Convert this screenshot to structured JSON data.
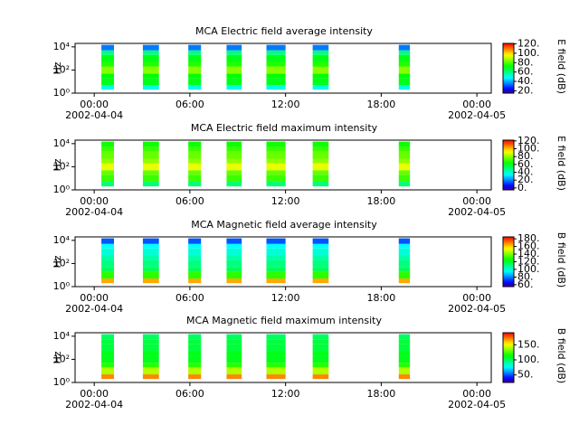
{
  "chart_data": [
    {
      "type": "spectrogram",
      "title": "MCA  Electric field average intensity",
      "y_label": "Hz",
      "colorbar_label": "E field (dB)",
      "y_scale": "log",
      "xlim": [
        -1.2,
        24.9
      ],
      "xticks": [
        {
          "value": 0,
          "label": "00:00",
          "date": "2002-04-04"
        },
        {
          "value": 6,
          "label": "06:00"
        },
        {
          "value": 12,
          "label": "12:00"
        },
        {
          "value": 18,
          "label": "18:00"
        },
        {
          "value": 24,
          "label": "00:00",
          "date": "2002-04-05"
        }
      ],
      "ylim": [
        1,
        20000
      ],
      "yticks": [
        {
          "value": 1,
          "label": "10⁰"
        },
        {
          "value": 100,
          "label": "10²"
        },
        {
          "value": 10000,
          "label": "10⁴"
        }
      ],
      "clim": [
        15,
        121
      ],
      "cticks": [
        {
          "value": 20,
          "label": "20."
        },
        {
          "value": 40,
          "label": "40."
        },
        {
          "value": 60,
          "label": "60."
        },
        {
          "value": 80,
          "label": "80."
        },
        {
          "value": 100,
          "label": "100."
        },
        {
          "value": 120,
          "label": "120."
        }
      ],
      "blocks": [
        [
          0.45,
          1.24
        ],
        [
          3.05,
          4.06
        ],
        [
          5.9,
          6.7
        ],
        [
          8.3,
          9.25
        ],
        [
          10.8,
          12.0
        ],
        [
          13.7,
          14.7
        ],
        [
          19.1,
          19.8
        ]
      ],
      "freq_edges": [
        2,
        5,
        20,
        50,
        200,
        500,
        2000,
        5000,
        15000
      ],
      "intensity": [
        50,
        70,
        72,
        85,
        75,
        70,
        60,
        35
      ]
    },
    {
      "type": "spectrogram",
      "title": "MCA  Electric field maximum intensity",
      "y_label": "Hz",
      "colorbar_label": "E field (dB)",
      "y_scale": "log",
      "xlim": [
        -1.2,
        24.9
      ],
      "xticks": [
        {
          "value": 0,
          "label": "00:00",
          "date": "2002-04-04"
        },
        {
          "value": 6,
          "label": "06:00"
        },
        {
          "value": 12,
          "label": "12:00"
        },
        {
          "value": 18,
          "label": "18:00"
        },
        {
          "value": 24,
          "label": "00:00",
          "date": "2002-04-05"
        }
      ],
      "ylim": [
        1,
        20000
      ],
      "yticks": [
        {
          "value": 1,
          "label": "10⁰"
        },
        {
          "value": 100,
          "label": "10²"
        },
        {
          "value": 10000,
          "label": "10⁴"
        }
      ],
      "clim": [
        -5,
        122
      ],
      "cticks": [
        {
          "value": 0,
          "label": "0."
        },
        {
          "value": 20,
          "label": "20."
        },
        {
          "value": 40,
          "label": "40."
        },
        {
          "value": 60,
          "label": "60."
        },
        {
          "value": 80,
          "label": "80."
        },
        {
          "value": 100,
          "label": "100."
        },
        {
          "value": 120,
          "label": "120."
        }
      ],
      "blocks": [
        [
          0.45,
          1.24
        ],
        [
          3.05,
          4.06
        ],
        [
          5.9,
          6.7
        ],
        [
          8.3,
          9.25
        ],
        [
          10.8,
          12.0
        ],
        [
          13.7,
          14.7
        ],
        [
          19.1,
          19.8
        ]
      ],
      "freq_edges": [
        2,
        5,
        20,
        50,
        200,
        500,
        2000,
        5000,
        15000
      ],
      "intensity": [
        50,
        70,
        75,
        90,
        80,
        75,
        70,
        65
      ]
    },
    {
      "type": "spectrogram",
      "title": "MCA  Magnetic field average intensity",
      "y_label": "Hz",
      "colorbar_label": "B field (dB)",
      "y_scale": "log",
      "xlim": [
        -1.2,
        24.9
      ],
      "xticks": [
        {
          "value": 0,
          "label": "00:00",
          "date": "2002-04-04"
        },
        {
          "value": 6,
          "label": "06:00"
        },
        {
          "value": 12,
          "label": "12:00"
        },
        {
          "value": 18,
          "label": "18:00"
        },
        {
          "value": 24,
          "label": "00:00",
          "date": "2002-04-05"
        }
      ],
      "ylim": [
        1,
        20000
      ],
      "yticks": [
        {
          "value": 1,
          "label": "10⁰"
        },
        {
          "value": 100,
          "label": "10²"
        },
        {
          "value": 10000,
          "label": "10⁴"
        }
      ],
      "clim": [
        55,
        185
      ],
      "cticks": [
        {
          "value": 60,
          "label": "60."
        },
        {
          "value": 80,
          "label": "80."
        },
        {
          "value": 100,
          "label": "100."
        },
        {
          "value": 120,
          "label": "120."
        },
        {
          "value": 140,
          "label": "140."
        },
        {
          "value": 160,
          "label": "160."
        },
        {
          "value": 180,
          "label": "180."
        }
      ],
      "blocks": [
        [
          0.45,
          1.24
        ],
        [
          3.05,
          4.06
        ],
        [
          5.9,
          6.7
        ],
        [
          8.3,
          9.25
        ],
        [
          10.8,
          12.0
        ],
        [
          13.7,
          14.7
        ],
        [
          19.1,
          19.8
        ]
      ],
      "freq_edges": [
        2,
        5,
        20,
        50,
        200,
        500,
        2000,
        5000,
        15000
      ],
      "intensity": [
        165,
        130,
        115,
        110,
        105,
        100,
        95,
        75
      ]
    },
    {
      "type": "spectrogram",
      "title": "MCA  Magnetic field maximum intensity",
      "y_label": "Hz",
      "colorbar_label": "B field (dB)",
      "y_scale": "log",
      "xlim": [
        -1.2,
        24.9
      ],
      "xticks": [
        {
          "value": 0,
          "label": "00:00",
          "date": "2002-04-04"
        },
        {
          "value": 6,
          "label": "06:00"
        },
        {
          "value": 12,
          "label": "12:00"
        },
        {
          "value": 18,
          "label": "18:00"
        },
        {
          "value": 24,
          "label": "00:00",
          "date": "2002-04-05"
        }
      ],
      "ylim": [
        1,
        20000
      ],
      "yticks": [
        {
          "value": 1,
          "label": "10⁰"
        },
        {
          "value": 100,
          "label": "10²"
        },
        {
          "value": 10000,
          "label": "10⁴"
        }
      ],
      "clim": [
        25,
        190
      ],
      "cticks": [
        {
          "value": 50,
          "label": "50."
        },
        {
          "value": 100,
          "label": "100."
        },
        {
          "value": 150,
          "label": "150."
        }
      ],
      "blocks": [
        [
          0.45,
          1.24
        ],
        [
          3.05,
          4.06
        ],
        [
          5.9,
          6.7
        ],
        [
          8.3,
          9.25
        ],
        [
          10.8,
          12.0
        ],
        [
          13.7,
          14.7
        ],
        [
          19.1,
          19.8
        ]
      ],
      "freq_edges": [
        2,
        5,
        20,
        50,
        200,
        500,
        2000,
        5000,
        15000
      ],
      "intensity": [
        170,
        140,
        120,
        110,
        110,
        105,
        105,
        100
      ]
    }
  ]
}
